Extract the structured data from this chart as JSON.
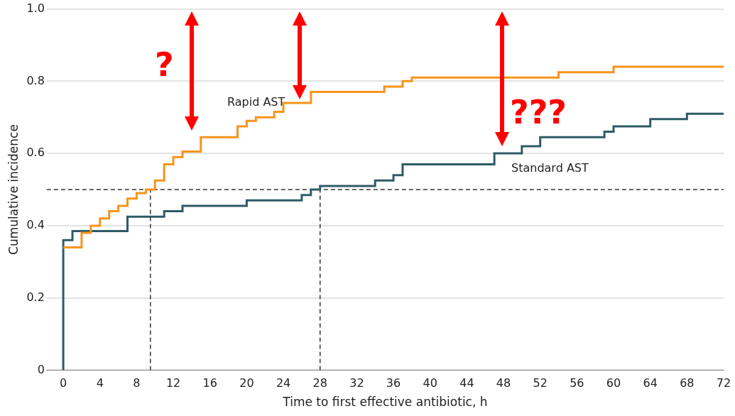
{
  "chart_data": {
    "type": "step",
    "xlabel": "Time to first effective antibiotic, h",
    "ylabel": "Cumulative incidence",
    "xlim": [
      -1.8,
      72
    ],
    "xticks": [
      0,
      4,
      8,
      12,
      16,
      20,
      24,
      28,
      32,
      36,
      40,
      44,
      48,
      52,
      56,
      60,
      64,
      68,
      72
    ],
    "ylim": [
      0,
      1
    ],
    "yticks": [
      0,
      0.2,
      0.4,
      0.6,
      0.8,
      {
        "value": 1,
        "label": "1.0"
      }
    ],
    "grid": "y",
    "legend": false,
    "marker": "none",
    "line_style": "solid",
    "series": [
      {
        "name": "Rapid AST",
        "color": "#f7941d",
        "x": [
          0,
          2,
          3,
          4,
          5,
          6,
          7,
          8,
          9,
          10,
          11,
          12,
          13,
          15,
          19,
          20,
          21,
          23,
          24,
          27,
          35,
          37,
          38,
          54,
          60,
          72
        ],
        "values": [
          0.34,
          0.38,
          0.4,
          0.42,
          0.44,
          0.455,
          0.475,
          0.49,
          0.5,
          0.525,
          0.57,
          0.59,
          0.605,
          0.645,
          0.675,
          0.69,
          0.7,
          0.715,
          0.74,
          0.77,
          0.785,
          0.8,
          0.81,
          0.825,
          0.84,
          0.84
        ]
      },
      {
        "name": "Standard AST",
        "color": "#2e5b66",
        "x": [
          0,
          0,
          1,
          7,
          11,
          13,
          20,
          26,
          27,
          28,
          34,
          36,
          37,
          47,
          50,
          52,
          59,
          60,
          64,
          68,
          72
        ],
        "values": [
          0,
          0.36,
          0.385,
          0.425,
          0.44,
          0.455,
          0.47,
          0.485,
          0.5,
          0.51,
          0.525,
          0.54,
          0.57,
          0.6,
          0.62,
          0.645,
          0.66,
          0.675,
          0.695,
          0.71,
          0.71
        ]
      }
    ],
    "ref_lines": [
      {
        "axis": "y",
        "value": 0.5,
        "color": "#333333",
        "line_style": "dashed"
      },
      {
        "axis": "x",
        "value": 9.5,
        "color": "#333333",
        "line_style": "dashed"
      },
      {
        "axis": "x",
        "value": 28,
        "color": "#333333",
        "line_style": "dashed"
      }
    ],
    "annotations": [
      "?",
      "???"
    ]
  }
}
